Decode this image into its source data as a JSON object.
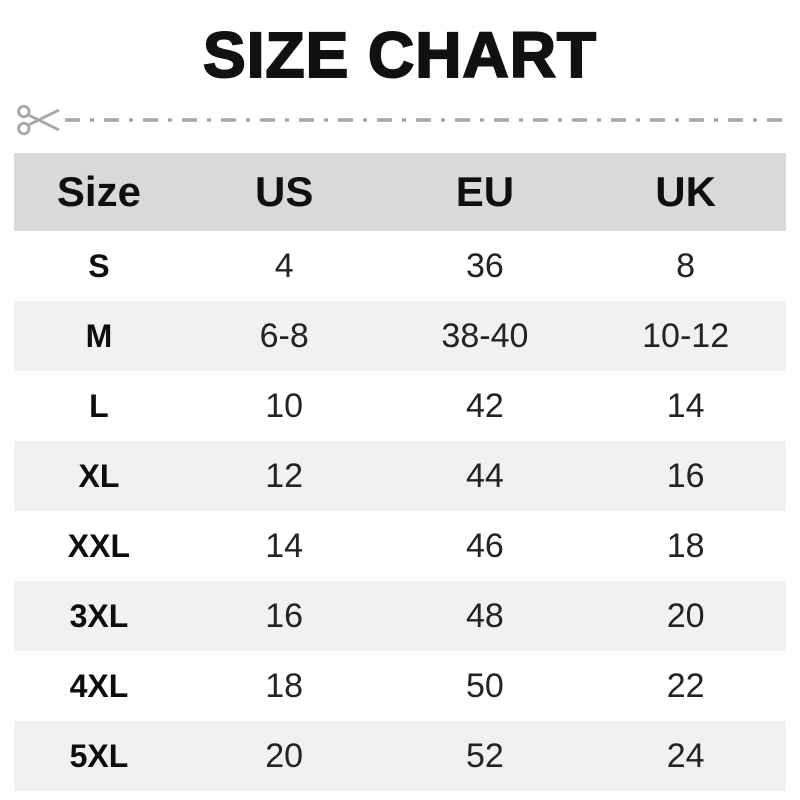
{
  "title": "SIZE CHART",
  "colors": {
    "header_bg": "#d9d9d9",
    "alt_row_bg": "#f1f1f1",
    "cut_line_gray": "#a6a6a6",
    "title_text": "#111111",
    "value_text": "#232323"
  },
  "icons": {
    "scissors": "scissors-icon"
  },
  "chart_data": {
    "type": "table",
    "title": "SIZE CHART",
    "columns": [
      "Size",
      "US",
      "EU",
      "UK"
    ],
    "rows": [
      [
        "S",
        "4",
        "36",
        "8"
      ],
      [
        "M",
        "6-8",
        "38-40",
        "10-12"
      ],
      [
        "L",
        "10",
        "42",
        "14"
      ],
      [
        "XL",
        "12",
        "44",
        "16"
      ],
      [
        "XXL",
        "14",
        "46",
        "18"
      ],
      [
        "3XL",
        "16",
        "48",
        "20"
      ],
      [
        "4XL",
        "18",
        "50",
        "22"
      ],
      [
        "5XL",
        "20",
        "52",
        "24"
      ]
    ]
  }
}
